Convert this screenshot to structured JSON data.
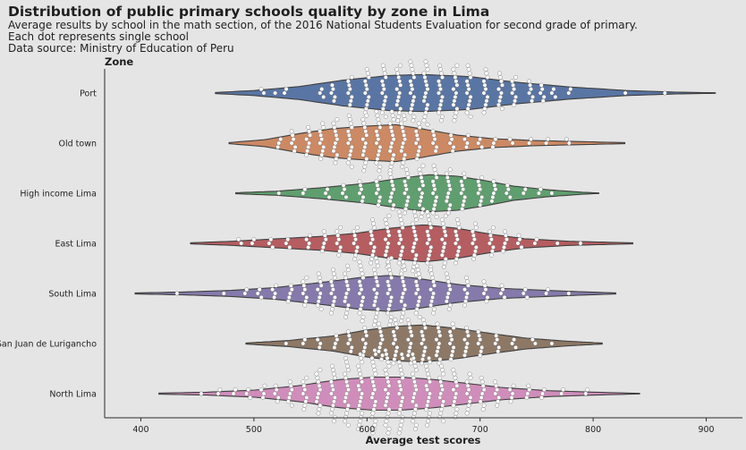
{
  "title": "Distribution of public primary schools quality by zone in Lima",
  "subtitles": [
    "Average results by school in the math section, of the 2016 National Students Evaluation for second grade of primary.",
    "Each dot represents single school",
    "Data source: Ministry of Education of Peru"
  ],
  "chart_data": {
    "type": "violin+swarm",
    "xlabel": "Average test scores",
    "ylabel": "Zone",
    "xlim": [
      368,
      932
    ],
    "xticks": [
      400,
      500,
      600,
      700,
      800,
      900
    ],
    "grid": false,
    "legend": "none",
    "dot_color": "#ffffff",
    "categories": [
      "Port",
      "Old town",
      "High income Lima",
      "East Lima",
      "South Lima",
      "San Juan de Lurigancho",
      "North Lima"
    ],
    "series": [
      {
        "name": "Port",
        "color": "#5975a4",
        "min": 466,
        "max": 908,
        "density": [
          [
            466,
            0.01
          ],
          [
            500,
            0.05
          ],
          [
            540,
            0.13
          ],
          [
            580,
            0.26
          ],
          [
            620,
            0.35
          ],
          [
            650,
            0.37
          ],
          [
            690,
            0.33
          ],
          [
            730,
            0.22
          ],
          [
            780,
            0.12
          ],
          [
            830,
            0.05
          ],
          [
            870,
            0.02
          ],
          [
            908,
            0.005
          ]
        ],
        "dots": [
          [
            508,
            2
          ],
          [
            518,
            1
          ],
          [
            527,
            2
          ],
          [
            560,
            3
          ],
          [
            570,
            5
          ],
          [
            585,
            8
          ],
          [
            600,
            12
          ],
          [
            615,
            14
          ],
          [
            628,
            15
          ],
          [
            640,
            16
          ],
          [
            652,
            17
          ],
          [
            665,
            15
          ],
          [
            678,
            15
          ],
          [
            690,
            14
          ],
          [
            705,
            12
          ],
          [
            718,
            10
          ],
          [
            730,
            8
          ],
          [
            745,
            6
          ],
          [
            755,
            5
          ],
          [
            765,
            3
          ],
          [
            780,
            2
          ],
          [
            830,
            1
          ],
          [
            865,
            1
          ]
        ]
      },
      {
        "name": "Old town",
        "color": "#cc8963",
        "min": 478,
        "max": 828,
        "density": [
          [
            478,
            0.01
          ],
          [
            510,
            0.07
          ],
          [
            540,
            0.19
          ],
          [
            570,
            0.29
          ],
          [
            600,
            0.34
          ],
          [
            625,
            0.37
          ],
          [
            650,
            0.28
          ],
          [
            680,
            0.16
          ],
          [
            710,
            0.09
          ],
          [
            750,
            0.05
          ],
          [
            790,
            0.03
          ],
          [
            828,
            0.01
          ]
        ],
        "dots": [
          [
            522,
            3
          ],
          [
            535,
            6
          ],
          [
            548,
            8
          ],
          [
            560,
            10
          ],
          [
            572,
            12
          ],
          [
            585,
            14
          ],
          [
            598,
            15
          ],
          [
            610,
            16
          ],
          [
            622,
            16
          ],
          [
            632,
            14
          ],
          [
            645,
            10
          ],
          [
            660,
            6
          ],
          [
            675,
            5
          ],
          [
            688,
            4
          ],
          [
            700,
            3
          ],
          [
            712,
            3
          ],
          [
            728,
            2
          ],
          [
            745,
            2
          ],
          [
            760,
            2
          ],
          [
            778,
            2
          ]
        ]
      },
      {
        "name": "High income Lima",
        "color": "#5f9e6e",
        "min": 484,
        "max": 805,
        "density": [
          [
            484,
            0.01
          ],
          [
            520,
            0.04
          ],
          [
            560,
            0.11
          ],
          [
            600,
            0.2
          ],
          [
            630,
            0.3
          ],
          [
            655,
            0.37
          ],
          [
            680,
            0.34
          ],
          [
            705,
            0.25
          ],
          [
            730,
            0.14
          ],
          [
            760,
            0.07
          ],
          [
            790,
            0.02
          ],
          [
            805,
            0.005
          ]
        ],
        "dots": [
          [
            522,
            1
          ],
          [
            545,
            2
          ],
          [
            565,
            3
          ],
          [
            580,
            4
          ],
          [
            595,
            6
          ],
          [
            610,
            8
          ],
          [
            622,
            10
          ],
          [
            635,
            12
          ],
          [
            648,
            14
          ],
          [
            660,
            14
          ],
          [
            672,
            12
          ],
          [
            685,
            10
          ],
          [
            700,
            8
          ],
          [
            712,
            6
          ],
          [
            725,
            4
          ],
          [
            740,
            2
          ],
          [
            752,
            2
          ],
          [
            765,
            1
          ]
        ]
      },
      {
        "name": "East Lima",
        "color": "#b55d60",
        "min": 444,
        "max": 835,
        "density": [
          [
            444,
            0.01
          ],
          [
            480,
            0.04
          ],
          [
            520,
            0.09
          ],
          [
            560,
            0.14
          ],
          [
            590,
            0.2
          ],
          [
            620,
            0.3
          ],
          [
            650,
            0.37
          ],
          [
            680,
            0.3
          ],
          [
            710,
            0.18
          ],
          [
            740,
            0.09
          ],
          [
            780,
            0.04
          ],
          [
            835,
            0.01
          ]
        ],
        "dots": [
          [
            488,
            2
          ],
          [
            500,
            2
          ],
          [
            515,
            3
          ],
          [
            530,
            3
          ],
          [
            548,
            4
          ],
          [
            562,
            6
          ],
          [
            575,
            8
          ],
          [
            590,
            9
          ],
          [
            605,
            12
          ],
          [
            618,
            14
          ],
          [
            630,
            16
          ],
          [
            642,
            17
          ],
          [
            655,
            16
          ],
          [
            668,
            14
          ],
          [
            680,
            12
          ],
          [
            695,
            10
          ],
          [
            710,
            8
          ],
          [
            722,
            6
          ],
          [
            735,
            4
          ],
          [
            750,
            2
          ],
          [
            770,
            1
          ],
          [
            788,
            1
          ]
        ]
      },
      {
        "name": "South Lima",
        "color": "#857aab",
        "min": 395,
        "max": 820,
        "density": [
          [
            395,
            0.01
          ],
          [
            440,
            0.03
          ],
          [
            480,
            0.06
          ],
          [
            520,
            0.12
          ],
          [
            560,
            0.22
          ],
          [
            595,
            0.32
          ],
          [
            620,
            0.36
          ],
          [
            645,
            0.3
          ],
          [
            680,
            0.18
          ],
          [
            720,
            0.1
          ],
          [
            770,
            0.05
          ],
          [
            820,
            0.01
          ]
        ],
        "dots": [
          [
            432,
            1
          ],
          [
            475,
            1
          ],
          [
            492,
            2
          ],
          [
            505,
            3
          ],
          [
            518,
            4
          ],
          [
            532,
            5
          ],
          [
            545,
            8
          ],
          [
            558,
            10
          ],
          [
            570,
            12
          ],
          [
            582,
            14
          ],
          [
            595,
            16
          ],
          [
            608,
            18
          ],
          [
            620,
            18
          ],
          [
            632,
            16
          ],
          [
            645,
            14
          ],
          [
            658,
            12
          ],
          [
            672,
            10
          ],
          [
            688,
            8
          ],
          [
            705,
            6
          ],
          [
            720,
            4
          ],
          [
            740,
            3
          ],
          [
            760,
            2
          ],
          [
            780,
            1
          ]
        ]
      },
      {
        "name": "San Juan de Lurigancho",
        "color": "#8d7866",
        "min": 493,
        "max": 808,
        "density": [
          [
            493,
            0.01
          ],
          [
            530,
            0.06
          ],
          [
            570,
            0.15
          ],
          [
            600,
            0.27
          ],
          [
            630,
            0.35
          ],
          [
            650,
            0.37
          ],
          [
            680,
            0.3
          ],
          [
            710,
            0.2
          ],
          [
            740,
            0.11
          ],
          [
            775,
            0.05
          ],
          [
            808,
            0.01
          ]
        ],
        "dots": [
          [
            530,
            1
          ],
          [
            545,
            2
          ],
          [
            558,
            3
          ],
          [
            572,
            4
          ],
          [
            585,
            6
          ],
          [
            598,
            8
          ],
          [
            612,
            10
          ],
          [
            625,
            12
          ],
          [
            638,
            12
          ],
          [
            650,
            12
          ],
          [
            663,
            11
          ],
          [
            675,
            10
          ],
          [
            688,
            8
          ],
          [
            700,
            7
          ],
          [
            715,
            5
          ],
          [
            730,
            3
          ],
          [
            748,
            2
          ],
          [
            765,
            1
          ]
        ]
      },
      {
        "name": "North Lima",
        "color": "#d08dbb",
        "min": 416,
        "max": 841,
        "density": [
          [
            416,
            0.01
          ],
          [
            460,
            0.03
          ],
          [
            500,
            0.07
          ],
          [
            540,
            0.16
          ],
          [
            575,
            0.28
          ],
          [
            605,
            0.33
          ],
          [
            630,
            0.33
          ],
          [
            660,
            0.28
          ],
          [
            690,
            0.2
          ],
          [
            720,
            0.12
          ],
          [
            760,
            0.06
          ],
          [
            800,
            0.03
          ],
          [
            841,
            0.005
          ]
        ],
        "dots": [
          [
            455,
            1
          ],
          [
            470,
            2
          ],
          [
            482,
            2
          ],
          [
            495,
            3
          ],
          [
            508,
            4
          ],
          [
            520,
            5
          ],
          [
            532,
            7
          ],
          [
            545,
            9
          ],
          [
            557,
            12
          ],
          [
            570,
            15
          ],
          [
            582,
            18
          ],
          [
            594,
            20
          ],
          [
            606,
            22
          ],
          [
            618,
            22
          ],
          [
            630,
            21
          ],
          [
            642,
            20
          ],
          [
            654,
            18
          ],
          [
            666,
            15
          ],
          [
            678,
            13
          ],
          [
            690,
            11
          ],
          [
            702,
            9
          ],
          [
            715,
            7
          ],
          [
            728,
            5
          ],
          [
            742,
            4
          ],
          [
            756,
            3
          ],
          [
            772,
            2
          ],
          [
            795,
            2
          ]
        ]
      }
    ]
  }
}
